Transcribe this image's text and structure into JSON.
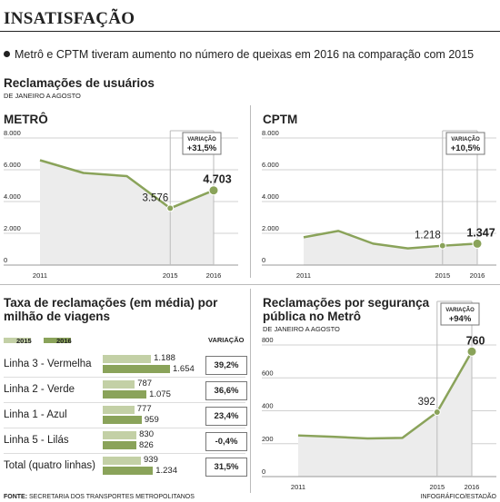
{
  "header": {
    "title": "INSATISFAÇÃO",
    "subtitle": "Metrô e CPTM tiveram aumento no número de queixas em 2016 na comparação com 2015",
    "section_title": "Reclamações de usuários",
    "section_sub": "DE JANEIRO A AGOSTO"
  },
  "colors": {
    "green": "#8aa35a",
    "light_green": "#c3d0a6",
    "area": "#ececec",
    "grid": "#d0d0d0"
  },
  "chart_data": [
    {
      "id": "metro",
      "type": "area",
      "title": "METRÔ",
      "x_labels": [
        "2011",
        "2015",
        "2016"
      ],
      "y_ticks": [
        "8.000",
        "6.000",
        "4.000",
        "2.000",
        "0"
      ],
      "ylim": [
        0,
        8000
      ],
      "values": [
        6600,
        5800,
        5600,
        3576,
        4703
      ],
      "labels": {
        "prev": "3.576",
        "last": "4.703"
      },
      "variation_title": "VARIAÇÃO",
      "variation": "+31,5%"
    },
    {
      "id": "cptm",
      "type": "area",
      "title": "CPTM",
      "x_labels": [
        "2011",
        "2015",
        "2016"
      ],
      "y_ticks": [
        "8.000",
        "6.000",
        "4.000",
        "2.000",
        "0"
      ],
      "ylim": [
        0,
        8000
      ],
      "values": [
        1750,
        2150,
        1350,
        1050,
        1218,
        1347
      ],
      "labels": {
        "prev": "1.218",
        "last": "1.347"
      },
      "variation_title": "VARIAÇÃO",
      "variation": "+10,5%"
    },
    {
      "id": "seguranca",
      "type": "area",
      "title": "Reclamações por segurança pública no Metrô",
      "subtitle": "DE JANEIRO A AGOSTO",
      "x_labels": [
        "2011",
        "2015",
        "2016"
      ],
      "y_ticks": [
        "800",
        "600",
        "400",
        "200",
        "0"
      ],
      "ylim": [
        0,
        800
      ],
      "values": [
        250,
        242,
        232,
        235,
        392,
        760
      ],
      "labels": {
        "prev": "392",
        "last": "760"
      },
      "variation_title": "VARIAÇÃO",
      "variation": "+94%"
    },
    {
      "id": "taxa",
      "type": "bar",
      "title": "Taxa de reclamações (em média) por milhão de viagens",
      "legend": [
        "2015",
        "2016"
      ],
      "variation_header": "VARIAÇÃO",
      "xlim": [
        0,
        1654
      ],
      "rows": [
        {
          "label": "Linha 3 - Vermelha",
          "v2015": 1188,
          "v2016": 1654,
          "t2015": "1.188",
          "t2016": "1.654",
          "variation": "39,2%"
        },
        {
          "label": "Linha 2 - Verde",
          "v2015": 787,
          "v2016": 1075,
          "t2015": "787",
          "t2016": "1.075",
          "variation": "36,6%"
        },
        {
          "label": "Linha 1 - Azul",
          "v2015": 777,
          "v2016": 959,
          "t2015": "777",
          "t2016": "959",
          "variation": "23,4%"
        },
        {
          "label": "Linha 5 - Lilás",
          "v2015": 830,
          "v2016": 826,
          "t2015": "830",
          "t2016": "826",
          "variation": "-0,4%"
        },
        {
          "label": "Total (quatro linhas)",
          "v2015": 939,
          "v2016": 1234,
          "t2015": "939",
          "t2016": "1.234",
          "variation": "31,5%"
        }
      ]
    }
  ],
  "footer": {
    "source_label": "FONTE:",
    "source": "SECRETARIA DOS TRANSPORTES METROPOLITANOS",
    "credit": "INFOGRÁFICO/ESTADÃO"
  }
}
